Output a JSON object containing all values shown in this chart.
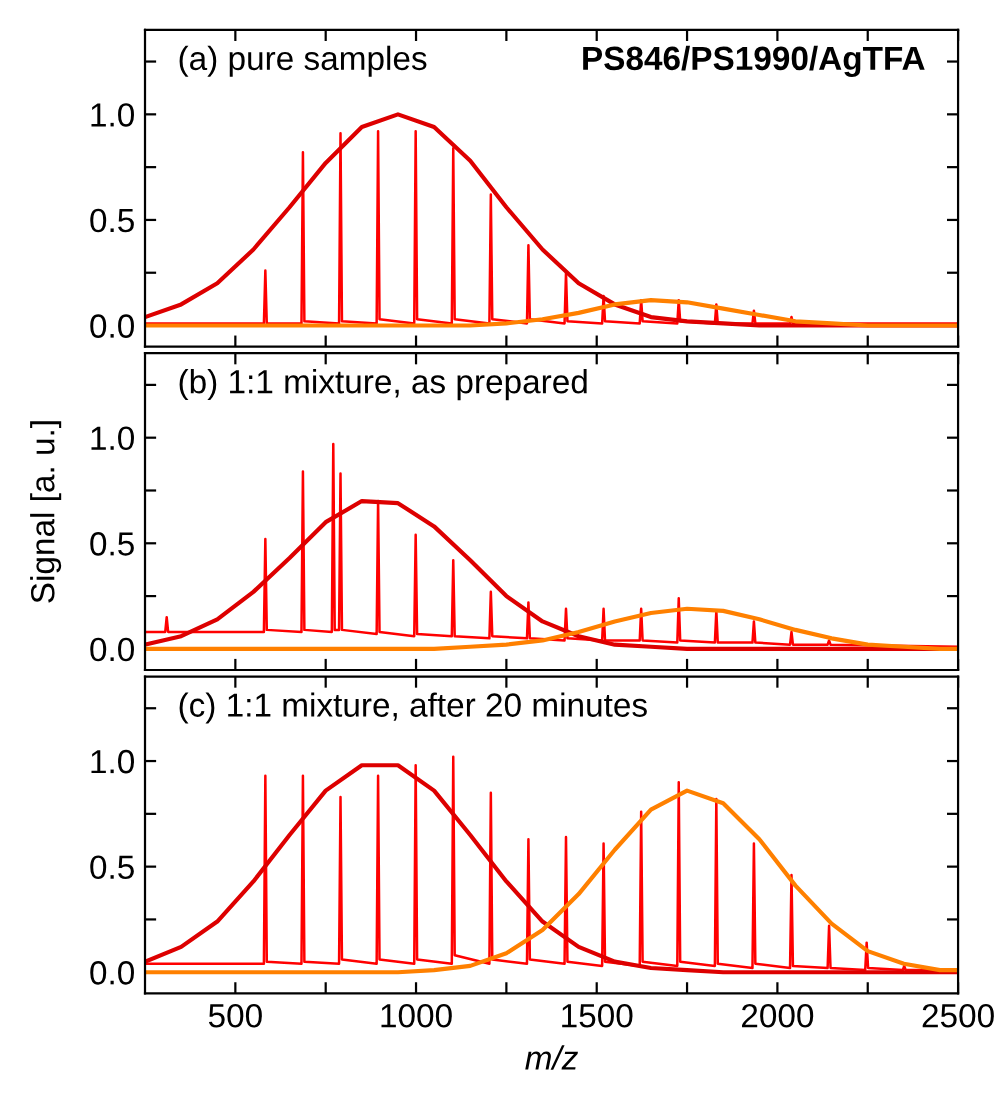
{
  "chart_data": [
    {
      "type": "line",
      "title": "(a) pure samples",
      "annotations": [
        "PS846/PS1990/AgTFA"
      ],
      "tick_labels": "y",
      "xlim": [
        250,
        2500
      ],
      "ylim": [
        -0.1,
        1.4
      ],
      "xticks": [
        {
          "value": 500,
          "label": null
        },
        {
          "value": 750,
          "label": null
        },
        {
          "value": 1000,
          "label": null
        },
        {
          "value": 1250,
          "label": null
        },
        {
          "value": 1500,
          "label": null
        },
        {
          "value": 1750,
          "label": null
        },
        {
          "value": 2000,
          "label": null
        },
        {
          "value": 2250,
          "label": null
        },
        {
          "value": 2500,
          "label": null
        }
      ],
      "yticks": [
        {
          "value": 0,
          "label": "0.0"
        },
        {
          "value": 0.25,
          "label": null
        },
        {
          "value": 0.5,
          "label": "0.5"
        },
        {
          "value": 0.75,
          "label": null
        },
        {
          "value": 1.0,
          "label": "1.0"
        },
        {
          "value": 1.25,
          "label": null
        }
      ],
      "series": [
        {
          "type": "line",
          "color": "#ff0000",
          "x": [
            250,
            579,
            583,
            587,
            683,
            687,
            691,
            787,
            791,
            795,
            891,
            895,
            899,
            995,
            999,
            1003,
            1099,
            1103,
            1107,
            1203,
            1207,
            1211,
            1307,
            1311,
            1315,
            1411,
            1415,
            1419,
            1515,
            1519,
            1523,
            1619,
            1623,
            1627,
            1723,
            1727,
            1731,
            1827,
            1831,
            1835,
            1931,
            1935,
            1939,
            2035,
            2039,
            2043,
            2500
          ],
          "values": [
            0.01,
            0.01,
            0.26,
            0.01,
            0.01,
            0.82,
            0.02,
            0.01,
            0.91,
            0.02,
            0.01,
            0.92,
            0.03,
            0.01,
            0.92,
            0.03,
            0.01,
            0.84,
            0.03,
            0.01,
            0.62,
            0.03,
            0.01,
            0.38,
            0.03,
            0.01,
            0.25,
            0.02,
            0.01,
            0.14,
            0.02,
            0.01,
            0.12,
            0.02,
            0.01,
            0.12,
            0.02,
            0.01,
            0.1,
            0.01,
            0.01,
            0.07,
            0.01,
            0.01,
            0.04,
            0.01,
            0.01
          ]
        },
        {
          "color": "#dd0000",
          "x": [
            250,
            350,
            450,
            550,
            650,
            750,
            850,
            950,
            1050,
            1150,
            1250,
            1350,
            1450,
            1550,
            1650,
            1750,
            1850,
            1950,
            2050,
            2150,
            2250,
            2350,
            2450,
            2500
          ],
          "values": [
            0.04,
            0.1,
            0.2,
            0.36,
            0.56,
            0.77,
            0.94,
            1.0,
            0.94,
            0.78,
            0.56,
            0.36,
            0.2,
            0.1,
            0.04,
            0.02,
            0.01,
            0,
            0,
            0,
            0,
            0,
            0,
            0
          ]
        },
        {
          "color": "#ff8000",
          "x": [
            250,
            350,
            450,
            550,
            650,
            750,
            850,
            950,
            1050,
            1150,
            1250,
            1350,
            1450,
            1550,
            1650,
            1750,
            1850,
            1950,
            2050,
            2150,
            2250,
            2350,
            2450,
            2500
          ],
          "values": [
            0,
            0,
            0,
            0,
            0,
            0,
            0,
            0,
            0,
            0,
            0.01,
            0.03,
            0.06,
            0.1,
            0.12,
            0.11,
            0.08,
            0.05,
            0.02,
            0.01,
            0,
            0,
            0,
            0
          ]
        }
      ]
    },
    {
      "type": "line",
      "title": "(b) 1:1 mixture, as prepared",
      "ylabel": "Signal [a. u.]",
      "tick_labels": "y",
      "xlim": [
        250,
        2500
      ],
      "ylim": [
        -0.1,
        1.4
      ],
      "xticks": [
        {
          "value": 500,
          "label": null
        },
        {
          "value": 750,
          "label": null
        },
        {
          "value": 1000,
          "label": null
        },
        {
          "value": 1250,
          "label": null
        },
        {
          "value": 1500,
          "label": null
        },
        {
          "value": 1750,
          "label": null
        },
        {
          "value": 2000,
          "label": null
        },
        {
          "value": 2250,
          "label": null
        },
        {
          "value": 2500,
          "label": null
        }
      ],
      "yticks": [
        {
          "value": 0,
          "label": "0.0"
        },
        {
          "value": 0.25,
          "label": null
        },
        {
          "value": 0.5,
          "label": "0.5"
        },
        {
          "value": 0.75,
          "label": null
        },
        {
          "value": 1.0,
          "label": "1.0"
        },
        {
          "value": 1.25,
          "label": null
        }
      ],
      "series": [
        {
          "type": "line",
          "color": "#ff0000",
          "x": [
            250,
            306,
            310,
            314,
            579,
            583,
            587,
            683,
            687,
            691,
            767,
            771,
            775,
            787,
            791,
            795,
            891,
            895,
            899,
            995,
            999,
            1003,
            1099,
            1103,
            1107,
            1203,
            1207,
            1211,
            1307,
            1311,
            1315,
            1411,
            1415,
            1419,
            1515,
            1519,
            1523,
            1619,
            1623,
            1627,
            1723,
            1727,
            1731,
            1827,
            1831,
            1835,
            1931,
            1935,
            1939,
            2035,
            2039,
            2043,
            2139,
            2143,
            2147,
            2500
          ],
          "values": [
            0.08,
            0.08,
            0.15,
            0.08,
            0.08,
            0.52,
            0.09,
            0.08,
            0.84,
            0.09,
            0.08,
            0.97,
            0.09,
            0.09,
            0.83,
            0.09,
            0.07,
            0.7,
            0.08,
            0.06,
            0.54,
            0.07,
            0.06,
            0.42,
            0.06,
            0.05,
            0.27,
            0.06,
            0.05,
            0.22,
            0.05,
            0.04,
            0.19,
            0.05,
            0.04,
            0.19,
            0.04,
            0.04,
            0.19,
            0.04,
            0.03,
            0.24,
            0.04,
            0.03,
            0.18,
            0.03,
            0.03,
            0.13,
            0.03,
            0.02,
            0.08,
            0.02,
            0.02,
            0.04,
            0.02,
            0.01
          ]
        },
        {
          "color": "#dd0000",
          "x": [
            250,
            350,
            450,
            550,
            650,
            750,
            850,
            950,
            1050,
            1150,
            1250,
            1350,
            1450,
            1550,
            1650,
            1750,
            1850,
            1950,
            2050,
            2150,
            2250,
            2350,
            2450,
            2500
          ],
          "values": [
            0.02,
            0.06,
            0.14,
            0.27,
            0.43,
            0.6,
            0.7,
            0.69,
            0.58,
            0.42,
            0.25,
            0.13,
            0.06,
            0.02,
            0.01,
            0,
            0,
            0,
            0,
            0,
            0,
            0,
            0,
            0
          ]
        },
        {
          "color": "#ff8000",
          "x": [
            250,
            350,
            450,
            550,
            650,
            750,
            850,
            950,
            1050,
            1150,
            1250,
            1350,
            1450,
            1550,
            1650,
            1750,
            1850,
            1950,
            2050,
            2150,
            2250,
            2350,
            2450,
            2500
          ],
          "values": [
            0,
            0,
            0,
            0,
            0,
            0,
            0,
            0,
            0,
            0.01,
            0.02,
            0.04,
            0.08,
            0.13,
            0.17,
            0.19,
            0.18,
            0.14,
            0.09,
            0.05,
            0.02,
            0.01,
            0,
            0
          ]
        }
      ]
    },
    {
      "type": "line",
      "title": "(c) 1:1 mixture, after 20 minutes",
      "xlabel": "m/z",
      "xlim": [
        250,
        2500
      ],
      "ylim": [
        -0.1,
        1.4
      ],
      "xticks": [
        500,
        {
          "value": 750,
          "label": null
        },
        1000,
        {
          "value": 1250,
          "label": null
        },
        1500,
        {
          "value": 1750,
          "label": null
        },
        2000,
        {
          "value": 2250,
          "label": null
        },
        2500
      ],
      "yticks": [
        {
          "value": 0,
          "label": "0.0"
        },
        {
          "value": 0.25,
          "label": null
        },
        {
          "value": 0.5,
          "label": "0.5"
        },
        {
          "value": 0.75,
          "label": null
        },
        {
          "value": 1.0,
          "label": "1.0"
        },
        {
          "value": 1.25,
          "label": null
        }
      ],
      "series": [
        {
          "type": "line",
          "color": "#ff0000",
          "x": [
            250,
            579,
            583,
            587,
            683,
            687,
            691,
            787,
            791,
            795,
            891,
            895,
            899,
            995,
            999,
            1003,
            1099,
            1103,
            1107,
            1203,
            1207,
            1211,
            1307,
            1311,
            1315,
            1411,
            1415,
            1419,
            1515,
            1519,
            1523,
            1619,
            1623,
            1627,
            1723,
            1727,
            1731,
            1827,
            1831,
            1835,
            1931,
            1935,
            1939,
            2035,
            2039,
            2043,
            2139,
            2143,
            2147,
            2243,
            2247,
            2251,
            2347,
            2351,
            2355,
            2500
          ],
          "values": [
            0.04,
            0.04,
            0.93,
            0.05,
            0.04,
            0.93,
            0.05,
            0.04,
            0.83,
            0.06,
            0.04,
            0.93,
            0.06,
            0.04,
            0.98,
            0.06,
            0.04,
            1.02,
            0.08,
            0.04,
            0.85,
            0.06,
            0.04,
            0.63,
            0.06,
            0.04,
            0.64,
            0.05,
            0.03,
            0.61,
            0.05,
            0.03,
            0.76,
            0.05,
            0.03,
            0.9,
            0.05,
            0.03,
            0.82,
            0.04,
            0.02,
            0.61,
            0.04,
            0.02,
            0.46,
            0.03,
            0.02,
            0.22,
            0.02,
            0.01,
            0.14,
            0.02,
            0.01,
            0.03,
            0.01,
            0.01
          ]
        },
        {
          "color": "#dd0000",
          "x": [
            250,
            350,
            450,
            550,
            650,
            750,
            850,
            950,
            1050,
            1150,
            1250,
            1350,
            1450,
            1550,
            1650,
            1750,
            1850,
            1950,
            2050,
            2150,
            2250,
            2350,
            2450,
            2500
          ],
          "values": [
            0.05,
            0.12,
            0.24,
            0.43,
            0.65,
            0.86,
            0.98,
            0.98,
            0.86,
            0.65,
            0.43,
            0.24,
            0.12,
            0.05,
            0.02,
            0.01,
            0,
            0,
            0,
            0,
            0,
            0,
            0,
            0
          ]
        },
        {
          "color": "#ff8000",
          "x": [
            250,
            350,
            450,
            550,
            650,
            750,
            850,
            950,
            1050,
            1150,
            1250,
            1350,
            1450,
            1550,
            1650,
            1750,
            1850,
            1950,
            2050,
            2150,
            2250,
            2350,
            2450,
            2500
          ],
          "values": [
            0,
            0,
            0,
            0,
            0,
            0,
            0,
            0,
            0.01,
            0.03,
            0.09,
            0.2,
            0.37,
            0.58,
            0.77,
            0.86,
            0.8,
            0.63,
            0.41,
            0.23,
            0.1,
            0.04,
            0.01,
            0.01
          ]
        }
      ]
    }
  ]
}
